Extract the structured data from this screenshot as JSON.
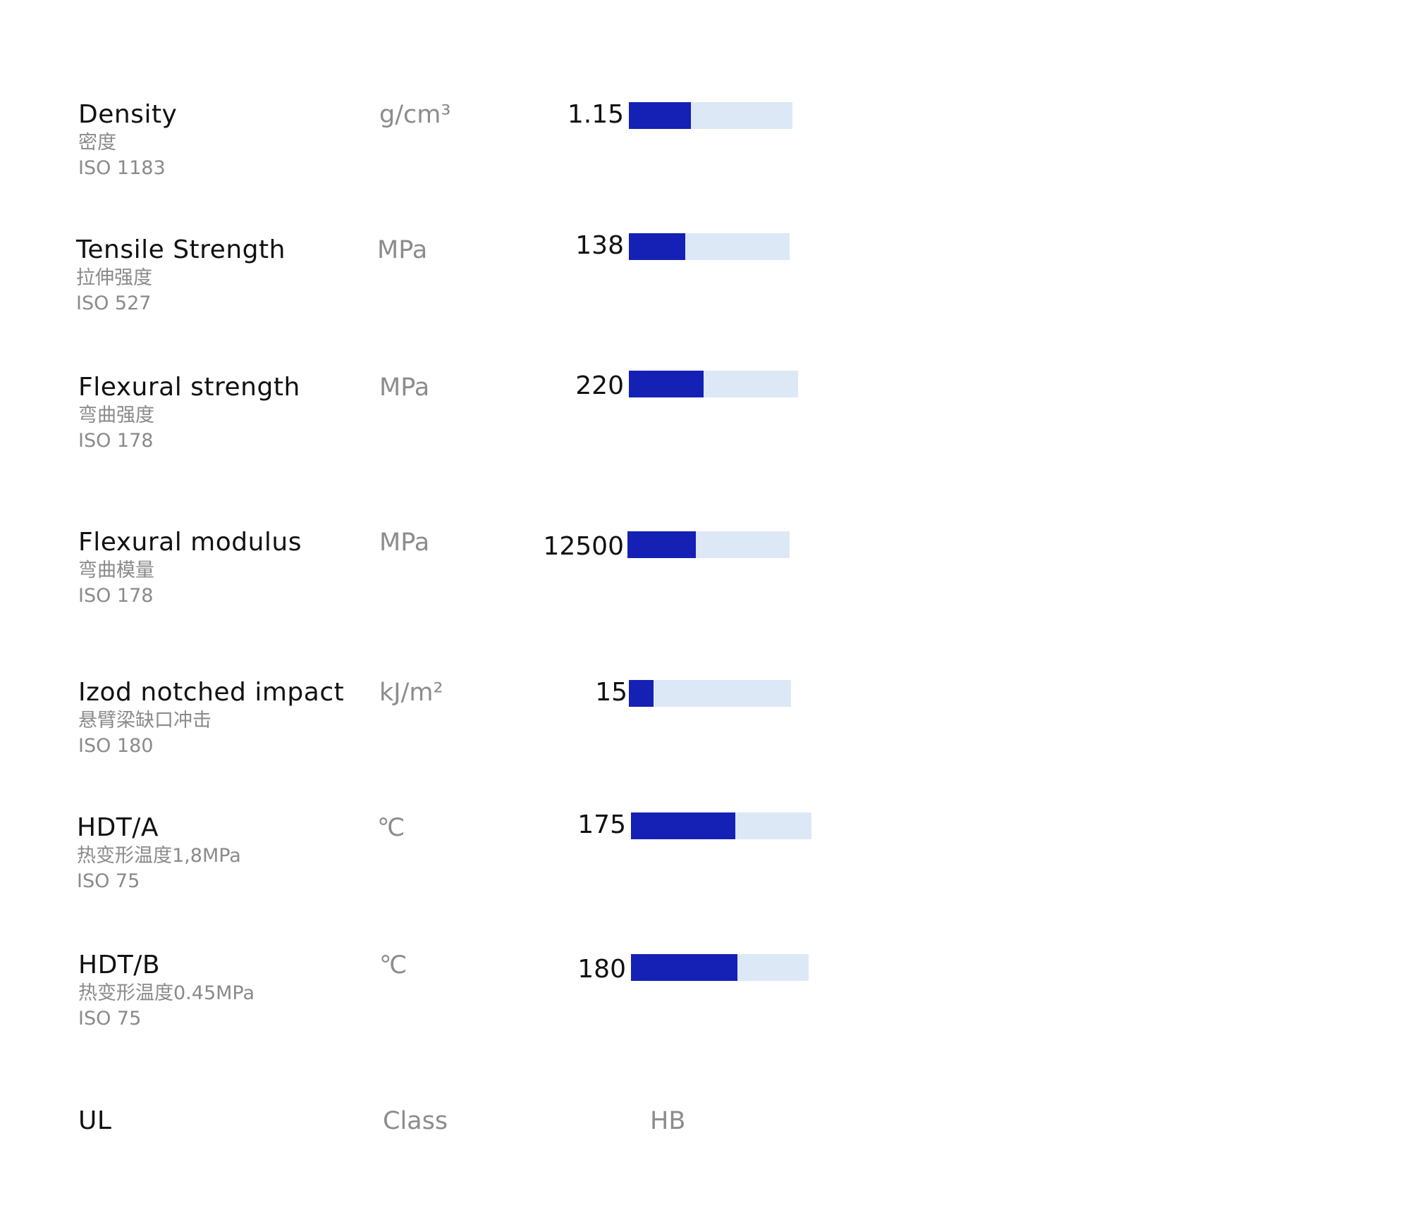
{
  "properties": [
    {
      "name": "Density",
      "name_cn": "密度",
      "standard": "ISO 1183",
      "unit": "g/cm³",
      "value": "1.15",
      "bar_fill": 0.38
    },
    {
      "name": "Tensile Strength",
      "name_cn": "拉伸强度",
      "standard": "ISO 527",
      "unit": "MPa",
      "value": "138",
      "bar_fill": 0.35
    },
    {
      "name": "Flexural strength",
      "name_cn": "弯曲强度",
      "standard": "ISO 178",
      "unit": "MPa",
      "value": "220",
      "bar_fill": 0.44
    },
    {
      "name": "Flexural modulus",
      "name_cn": "弯曲模量",
      "standard": "ISO 178",
      "unit": "MPa",
      "value": "12500",
      "bar_fill": 0.42
    },
    {
      "name": "Izod notched impact",
      "name_cn": "悬臂梁缺口冲击",
      "standard": "ISO 180",
      "unit": "kJ/m²",
      "value": "15",
      "bar_fill": 0.15
    },
    {
      "name": "HDT/A",
      "name_cn": "热变形温度1,8MPa",
      "standard": "ISO 75",
      "unit": "℃",
      "value": "175",
      "bar_fill": 0.58
    },
    {
      "name": "HDT/B",
      "name_cn": "热变形温度0.45MPa",
      "standard": "ISO 75",
      "unit": "℃",
      "value": "180",
      "bar_fill": 0.6
    }
  ],
  "ul": {
    "name": "UL",
    "unit": "Class",
    "value": "HB"
  },
  "colors": {
    "bar_fill": "#1520b4",
    "bar_track": "#dde8f6"
  }
}
